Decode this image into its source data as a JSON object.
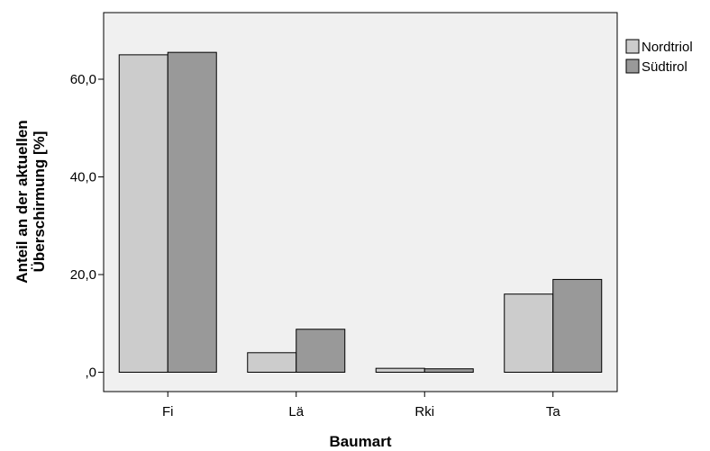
{
  "chart_data": {
    "type": "bar",
    "categories": [
      "Fi",
      "Lä",
      "Rki",
      "Ta"
    ],
    "series": [
      {
        "name": "Nordtriol",
        "values": [
          65.0,
          4.0,
          0.8,
          16.0
        ],
        "color": "#cccccc"
      },
      {
        "name": "Südtirol",
        "values": [
          65.5,
          8.8,
          0.7,
          19.0
        ],
        "color": "#999999"
      }
    ],
    "xlabel": "Baumart",
    "ylabel_lines": [
      "Anteil an der aktuellen",
      "Überschirmung [%]"
    ],
    "ylim": [
      -5,
      74
    ],
    "yticks": [
      0,
      20,
      40,
      60
    ],
    "ytick_labels": [
      ",0",
      "20,0",
      "40,0",
      "60,0"
    ],
    "grid": false,
    "legend_position": "right",
    "plot_background": "#f0f0f0"
  }
}
